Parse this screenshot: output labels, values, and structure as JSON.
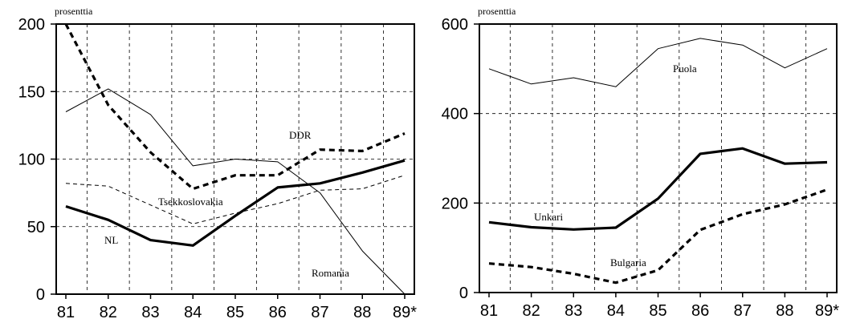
{
  "chart_data": [
    {
      "type": "line",
      "ylabel": "prosenttia",
      "categories": [
        "81",
        "82",
        "83",
        "84",
        "85",
        "86",
        "87",
        "88",
        "89*"
      ],
      "ylim": [
        0,
        200
      ],
      "yticks": [
        0,
        50,
        100,
        150,
        200
      ],
      "grid": true,
      "series": [
        {
          "name": "DDR",
          "style": "thick-dashed",
          "x": [
            81,
            82,
            83,
            84,
            85,
            86,
            87,
            88,
            89
          ],
          "values": [
            200,
            140,
            105,
            78,
            88,
            88,
            107,
            106,
            119
          ]
        },
        {
          "name": "Romania",
          "style": "thin-solid",
          "x": [
            81,
            82,
            83,
            84,
            85,
            86,
            87,
            88,
            89
          ],
          "values": [
            135,
            152,
            133,
            95,
            100,
            98,
            75,
            32,
            0
          ]
        },
        {
          "name": "Tsekkoslovakia",
          "style": "thin-dashed",
          "x": [
            81,
            82,
            83,
            84,
            85,
            86,
            87,
            88,
            89
          ],
          "values": [
            82,
            80,
            66,
            52,
            60,
            67,
            77,
            78,
            88
          ]
        },
        {
          "name": "NL",
          "style": "thick-solid",
          "x": [
            81,
            82,
            83,
            84,
            85,
            86,
            87,
            88,
            89
          ],
          "values": [
            65,
            55,
            40,
            36,
            58,
            79,
            82,
            90,
            99
          ]
        }
      ]
    },
    {
      "type": "line",
      "ylabel": "prosenttia",
      "categories": [
        "81",
        "82",
        "83",
        "84",
        "85",
        "86",
        "87",
        "88",
        "89*"
      ],
      "ylim": [
        0,
        600
      ],
      "yticks": [
        0,
        200,
        400,
        600
      ],
      "grid": true,
      "series": [
        {
          "name": "Puola",
          "style": "thin-solid",
          "x": [
            81,
            82,
            83,
            84,
            85,
            86,
            87,
            88,
            89
          ],
          "values": [
            500,
            466,
            480,
            460,
            545,
            568,
            553,
            502,
            545
          ]
        },
        {
          "name": "Unkari",
          "style": "thick-solid",
          "x": [
            81,
            82,
            83,
            84,
            85,
            86,
            87,
            88,
            89
          ],
          "values": [
            157,
            146,
            141,
            145,
            210,
            310,
            322,
            288,
            291
          ]
        },
        {
          "name": "Bulgaria",
          "style": "thick-dashed",
          "x": [
            81,
            82,
            83,
            84,
            85,
            86,
            87,
            88,
            89
          ],
          "values": [
            65,
            57,
            42,
            22,
            50,
            140,
            175,
            197,
            230
          ]
        }
      ]
    }
  ]
}
